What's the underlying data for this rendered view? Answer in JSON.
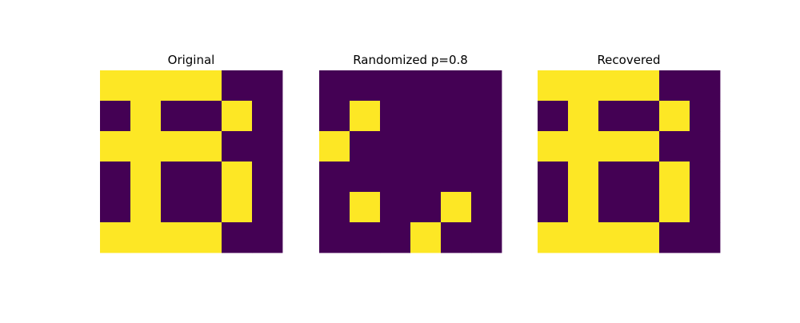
{
  "chart_data": [
    {
      "type": "heatmap",
      "title": "Original",
      "rows": 6,
      "cols": 6,
      "values": [
        [
          1,
          1,
          1,
          1,
          0,
          0
        ],
        [
          0,
          1,
          0,
          0,
          1,
          0
        ],
        [
          1,
          1,
          1,
          1,
          0,
          0
        ],
        [
          0,
          1,
          0,
          0,
          1,
          0
        ],
        [
          0,
          1,
          0,
          0,
          1,
          0
        ],
        [
          1,
          1,
          1,
          1,
          0,
          0
        ]
      ]
    },
    {
      "type": "heatmap",
      "title": "Randomized p=0.8",
      "rows": 6,
      "cols": 6,
      "values": [
        [
          0,
          0,
          0,
          0,
          0,
          0
        ],
        [
          0,
          1,
          0,
          0,
          0,
          0
        ],
        [
          1,
          0,
          0,
          0,
          0,
          0
        ],
        [
          0,
          0,
          0,
          0,
          0,
          0
        ],
        [
          0,
          1,
          0,
          0,
          1,
          0
        ],
        [
          0,
          0,
          0,
          1,
          0,
          0
        ]
      ]
    },
    {
      "type": "heatmap",
      "title": "Recovered",
      "rows": 6,
      "cols": 6,
      "values": [
        [
          1,
          1,
          1,
          1,
          0,
          0
        ],
        [
          0,
          1,
          0,
          0,
          1,
          0
        ],
        [
          1,
          1,
          1,
          1,
          0,
          0
        ],
        [
          0,
          1,
          0,
          0,
          1,
          0
        ],
        [
          0,
          1,
          0,
          0,
          1,
          0
        ],
        [
          1,
          1,
          1,
          1,
          0,
          0
        ]
      ]
    }
  ],
  "colors": {
    "low": "#440154",
    "high": "#fde725"
  }
}
